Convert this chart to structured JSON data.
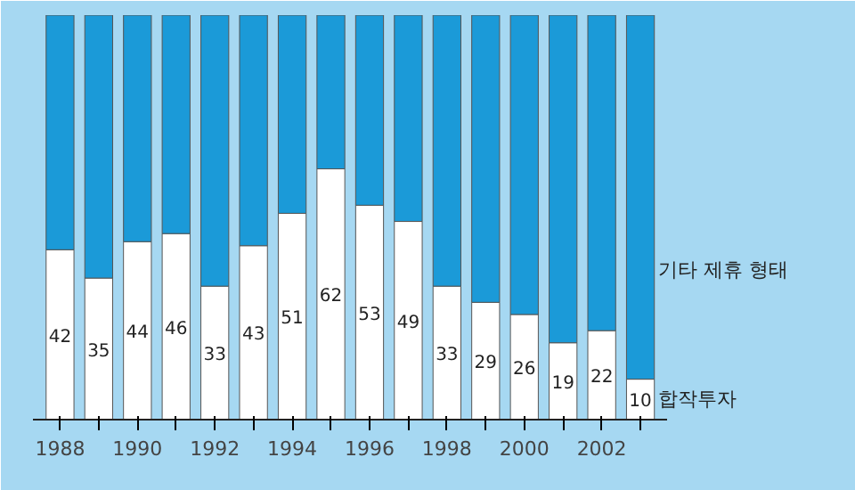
{
  "chart_data": {
    "type": "bar",
    "stacked": true,
    "legend": false,
    "tick_labels": "x",
    "categories": [
      "1988",
      null,
      "1990",
      null,
      "1992",
      null,
      "1994",
      null,
      "1996",
      null,
      "1998",
      null,
      "2000",
      null,
      "2002",
      null
    ],
    "series": [
      {
        "name": "합작투자",
        "color": "#ffffff",
        "values": [
          42,
          35,
          44,
          46,
          33,
          43,
          51,
          62,
          53,
          49,
          33,
          29,
          26,
          19,
          22,
          10
        ],
        "value_labels": [
          "42",
          "35",
          "44",
          "46",
          "33",
          "43",
          "51",
          "62",
          "53",
          "49",
          "33",
          "29",
          "26",
          "19",
          "22",
          "10"
        ]
      },
      {
        "name": "기타 제휴 형태",
        "color": "#1b9ad8",
        "values": [
          58,
          65,
          56,
          54,
          67,
          57,
          49,
          38,
          47,
          51,
          67,
          71,
          74,
          81,
          78,
          90
        ]
      }
    ]
  }
}
